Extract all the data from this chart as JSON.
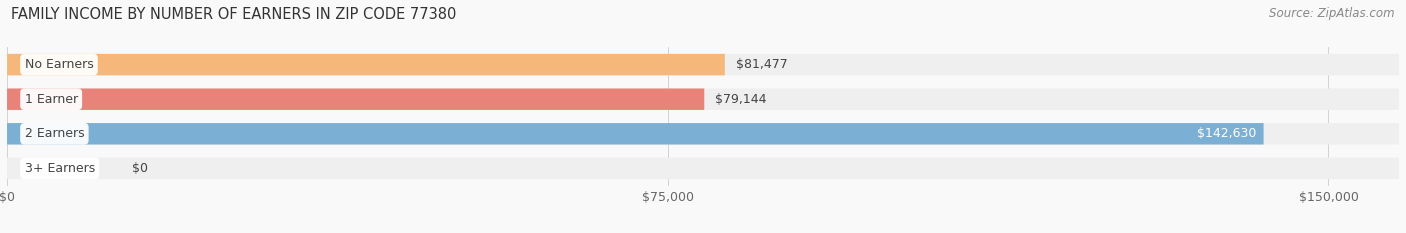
{
  "title": "FAMILY INCOME BY NUMBER OF EARNERS IN ZIP CODE 77380",
  "source": "Source: ZipAtlas.com",
  "categories": [
    "No Earners",
    "1 Earner",
    "2 Earners",
    "3+ Earners"
  ],
  "values": [
    81477,
    79144,
    142630,
    0
  ],
  "bar_colors": [
    "#f5b87a",
    "#e8837a",
    "#7bafd4",
    "#c9a8d4"
  ],
  "bar_bg_color": "#efefef",
  "value_labels": [
    "$81,477",
    "$79,144",
    "$142,630",
    "$0"
  ],
  "x_ticks": [
    0,
    75000,
    150000
  ],
  "x_tick_labels": [
    "$0",
    "$75,000",
    "$150,000"
  ],
  "xlim": [
    0,
    158000
  ],
  "title_fontsize": 10.5,
  "source_fontsize": 8.5,
  "label_fontsize": 9,
  "tick_fontsize": 9,
  "background_color": "#f9f9f9"
}
